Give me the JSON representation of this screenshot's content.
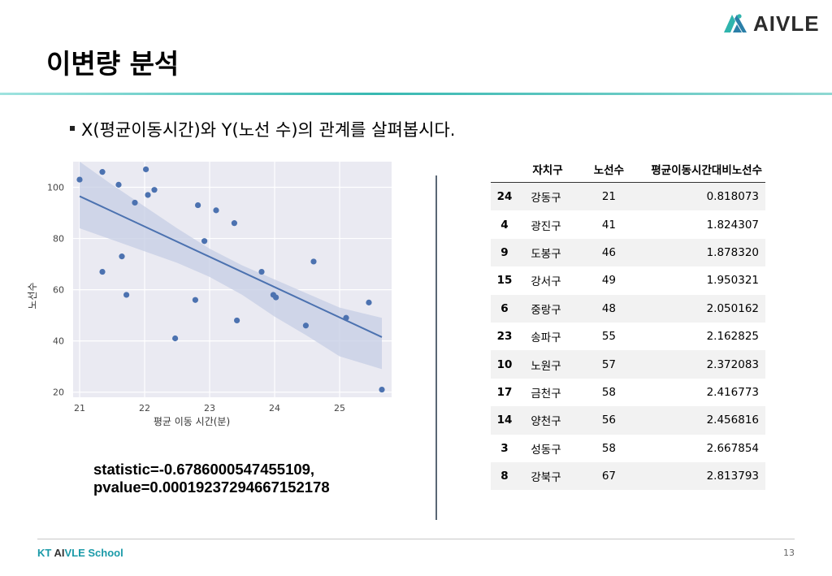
{
  "brand": {
    "logo_text": "AIVLE",
    "accent": "#38b9b2"
  },
  "slide": {
    "title": "이변량 분석",
    "bullet": "X(평균이동시간)와 Y(노선 수)의 관계를 살펴봅시다.",
    "stats_line1": "statistic=-0.6786000547455109,",
    "stats_line2": "pvalue=0.00019237294667152178"
  },
  "chart_data": {
    "type": "scatter",
    "xlabel": "평균 이동 시간(분)",
    "ylabel": "노선수",
    "xlim": [
      20.9,
      25.8
    ],
    "ylim": [
      18,
      110
    ],
    "xticks": [
      21,
      22,
      23,
      24,
      25
    ],
    "yticks": [
      20,
      40,
      60,
      80,
      100
    ],
    "grid": true,
    "points": [
      {
        "x": 21.0,
        "y": 103
      },
      {
        "x": 21.35,
        "y": 106
      },
      {
        "x": 21.35,
        "y": 67
      },
      {
        "x": 21.6,
        "y": 101
      },
      {
        "x": 21.65,
        "y": 73
      },
      {
        "x": 21.72,
        "y": 58
      },
      {
        "x": 21.85,
        "y": 94
      },
      {
        "x": 22.02,
        "y": 107
      },
      {
        "x": 22.05,
        "y": 97
      },
      {
        "x": 22.15,
        "y": 99
      },
      {
        "x": 22.47,
        "y": 41
      },
      {
        "x": 22.78,
        "y": 56
      },
      {
        "x": 22.82,
        "y": 93
      },
      {
        "x": 22.92,
        "y": 79
      },
      {
        "x": 23.1,
        "y": 91
      },
      {
        "x": 23.38,
        "y": 86
      },
      {
        "x": 23.42,
        "y": 48
      },
      {
        "x": 23.8,
        "y": 67
      },
      {
        "x": 23.98,
        "y": 58
      },
      {
        "x": 24.02,
        "y": 57
      },
      {
        "x": 24.48,
        "y": 46
      },
      {
        "x": 24.6,
        "y": 71
      },
      {
        "x": 25.1,
        "y": 49
      },
      {
        "x": 25.45,
        "y": 55
      },
      {
        "x": 25.65,
        "y": 21
      }
    ],
    "regression": {
      "x": [
        21.0,
        25.65
      ],
      "y": [
        96.5,
        41.5
      ]
    },
    "confidence_band": {
      "x": [
        21.0,
        21.5,
        22.0,
        22.5,
        23.0,
        23.5,
        24.0,
        24.5,
        25.0,
        25.65
      ],
      "upper": [
        110,
        101,
        92.5,
        84,
        76,
        69.5,
        64,
        58.5,
        53,
        49
      ],
      "lower": [
        84,
        79.5,
        75,
        70.5,
        65,
        58,
        49.5,
        42,
        34,
        29
      ]
    },
    "colors": {
      "point": "#4c72b0",
      "band": "#c6cde4",
      "plot_bg": "#eaeaf2",
      "grid": "#ffffff"
    }
  },
  "table": {
    "columns": [
      "자치구",
      "노선수",
      "평균이동시간대비노선수"
    ],
    "rows": [
      {
        "idx": "24",
        "gu": "강동구",
        "n": "21",
        "ratio": "0.818073"
      },
      {
        "idx": "4",
        "gu": "광진구",
        "n": "41",
        "ratio": "1.824307"
      },
      {
        "idx": "9",
        "gu": "도봉구",
        "n": "46",
        "ratio": "1.878320"
      },
      {
        "idx": "15",
        "gu": "강서구",
        "n": "49",
        "ratio": "1.950321"
      },
      {
        "idx": "6",
        "gu": "중랑구",
        "n": "48",
        "ratio": "2.050162"
      },
      {
        "idx": "23",
        "gu": "송파구",
        "n": "55",
        "ratio": "2.162825"
      },
      {
        "idx": "10",
        "gu": "노원구",
        "n": "57",
        "ratio": "2.372083"
      },
      {
        "idx": "17",
        "gu": "금천구",
        "n": "58",
        "ratio": "2.416773"
      },
      {
        "idx": "14",
        "gu": "양천구",
        "n": "56",
        "ratio": "2.456816"
      },
      {
        "idx": "3",
        "gu": "성동구",
        "n": "58",
        "ratio": "2.667854"
      },
      {
        "idx": "8",
        "gu": "강북구",
        "n": "67",
        "ratio": "2.813793"
      }
    ]
  },
  "footer": {
    "school_prefix": "KT ",
    "school_ai": "AI",
    "school_rest": "VLE School",
    "page_number": "13"
  }
}
